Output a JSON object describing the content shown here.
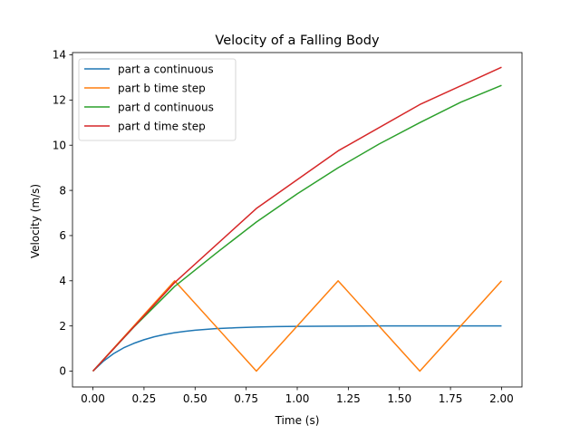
{
  "chart_data": {
    "type": "line",
    "title": "Velocity of a Falling Body",
    "xlabel": "Time (s)",
    "ylabel": "Velocity (m/s)",
    "xlim": [
      -0.1,
      2.1
    ],
    "ylim": [
      -0.7,
      14.1
    ],
    "xticks": [
      0.0,
      0.25,
      0.5,
      0.75,
      1.0,
      1.25,
      1.5,
      1.75,
      2.0
    ],
    "xtick_labels": [
      "0.00",
      "0.25",
      "0.50",
      "0.75",
      "1.00",
      "1.25",
      "1.50",
      "1.75",
      "2.00"
    ],
    "yticks": [
      0,
      2,
      4,
      6,
      8,
      10,
      12,
      14
    ],
    "ytick_labels": [
      "0",
      "2",
      "4",
      "6",
      "8",
      "10",
      "12",
      "14"
    ],
    "grid": false,
    "legend_position": "top-left",
    "series": [
      {
        "name": "part a continuous",
        "color": "#1f77b4",
        "x": [
          0,
          0.05,
          0.1,
          0.15,
          0.2,
          0.25,
          0.3,
          0.35,
          0.4,
          0.45,
          0.5,
          0.6,
          0.7,
          0.8,
          0.9,
          1.0,
          1.2,
          1.4,
          1.6,
          1.8,
          2.0
        ],
        "y": [
          0,
          0.43,
          0.77,
          1.03,
          1.23,
          1.39,
          1.52,
          1.62,
          1.7,
          1.76,
          1.81,
          1.88,
          1.92,
          1.95,
          1.97,
          1.98,
          1.99,
          2.0,
          2.0,
          2.0,
          2.0
        ]
      },
      {
        "name": "part b time step",
        "color": "#ff7f0e",
        "x": [
          0,
          0.4,
          0.8,
          1.2,
          1.6,
          2.0
        ],
        "y": [
          0,
          4,
          0,
          4,
          0,
          4
        ]
      },
      {
        "name": "part d continuous",
        "color": "#2ca02c",
        "x": [
          0,
          0.2,
          0.4,
          0.6,
          0.8,
          1.0,
          1.2,
          1.4,
          1.6,
          1.8,
          2.0
        ],
        "y": [
          0,
          1.95,
          3.75,
          5.2,
          6.6,
          7.85,
          9.0,
          10.05,
          11.0,
          11.9,
          12.65
        ]
      },
      {
        "name": "part d time step",
        "color": "#d62728",
        "x": [
          0,
          0.4,
          0.8,
          1.2,
          1.6,
          2.0
        ],
        "y": [
          0,
          3.92,
          7.2,
          9.75,
          11.8,
          13.45
        ]
      }
    ]
  }
}
